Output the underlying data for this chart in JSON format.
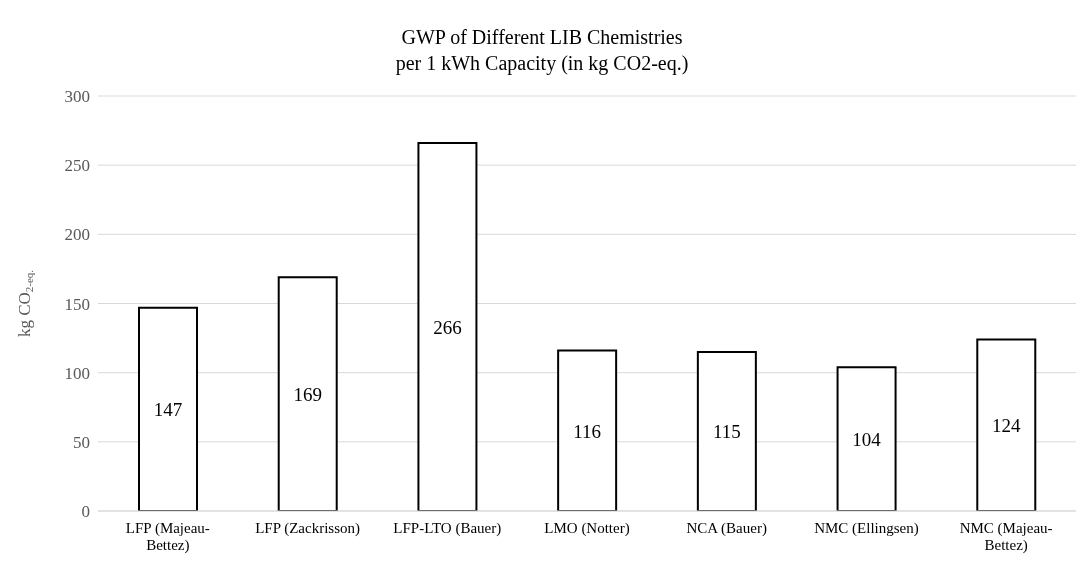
{
  "chart_data": {
    "type": "bar",
    "title": "GWP of Different LIB Chemistries",
    "subtitle": "per 1 kWh Capacity (in kg CO2-eq.)",
    "ylabel": "kg CO$_{2-eq.}$",
    "categories": [
      "LFP (Majeau-Bettez)",
      "LFP (Zackrisson)",
      "LFP-LTO (Bauer)",
      "LMO (Notter)",
      "NCA (Bauer)",
      "NMC (Ellingsen)",
      "NMC (Majeau-Bettez)"
    ],
    "values": [
      147,
      169,
      266,
      116,
      115,
      104,
      124
    ],
    "color": "#ffffff",
    "ylim": [
      0,
      300
    ],
    "yticks": [
      0,
      50,
      100,
      150,
      200,
      250,
      300
    ],
    "grid": "y",
    "data_labels": true
  }
}
